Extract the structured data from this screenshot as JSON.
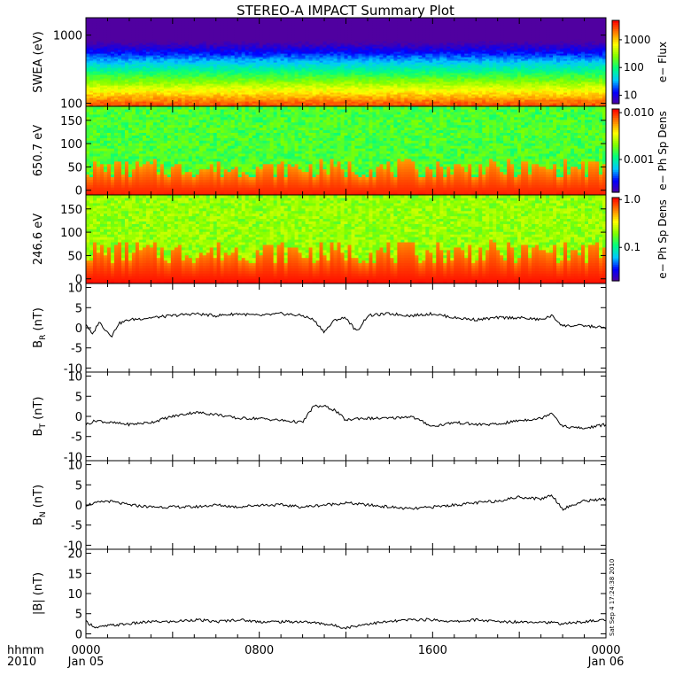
{
  "title": "STEREO-A IMPACT Summary Plot",
  "timestamp": "Sat Sep 4 17:24:38 2010",
  "x_axis": {
    "unit_label": "hhmm",
    "year_label": "2010",
    "ticks": [
      {
        "hour": 0,
        "label": "0000",
        "sublabel": "Jan 05"
      },
      {
        "hour": 8,
        "label": "0800",
        "sublabel": ""
      },
      {
        "hour": 16,
        "label": "1600",
        "sublabel": ""
      },
      {
        "hour": 24,
        "label": "0000",
        "sublabel": "Jan 06"
      }
    ],
    "range_hours": [
      0,
      24
    ]
  },
  "colors": {
    "colormap": [
      "#5000a0",
      "#0000ff",
      "#00c8ff",
      "#00ff80",
      "#80ff00",
      "#ffff00",
      "#ff8000",
      "#ff0000"
    ],
    "line": "#000000",
    "background": "#ffffff"
  },
  "chart_data": [
    {
      "type": "heatmap",
      "id": "swea",
      "ylabel": "SWEA (eV)",
      "yscale": "log",
      "yticks": [
        100,
        1000
      ],
      "ylim": [
        90,
        1800
      ],
      "colorbar": {
        "label": "e− Flux",
        "scale": "log",
        "ticks": [
          {
            "v": 10,
            "label": "10"
          },
          {
            "v": 100,
            "label": "100"
          },
          {
            "v": 1000,
            "label": "1000"
          }
        ],
        "range": [
          5,
          5000
        ]
      },
      "profile": {
        "energy_at_peak": 100,
        "flux_at_peak": 2500,
        "decay_per_decade": 3.0
      }
    },
    {
      "type": "heatmap",
      "id": "pad650",
      "ylabel": "650.7 eV",
      "ylim": [
        -10,
        180
      ],
      "yticks": [
        0,
        50,
        100,
        150
      ],
      "colorbar": {
        "label": "e− Ph Sp Dens",
        "scale": "log",
        "ticks": [
          {
            "v": 0.001,
            "label": "0.001"
          },
          {
            "v": 0.01,
            "label": "0.010"
          }
        ],
        "range": [
          0.0002,
          0.012
        ]
      },
      "background_value": 0.0015,
      "low_angle_value": 0.007,
      "low_angle_width_deg": 45
    },
    {
      "type": "heatmap",
      "id": "pad246",
      "ylabel": "246.6 eV",
      "ylim": [
        -10,
        180
      ],
      "yticks": [
        0,
        50,
        100,
        150
      ],
      "colorbar": {
        "label": "e− Ph Sp Dens",
        "scale": "log",
        "ticks": [
          {
            "v": 0.1,
            "label": "0.1"
          },
          {
            "v": 1.0,
            "label": "1.0"
          }
        ],
        "range": [
          0.02,
          1.1
        ]
      },
      "background_value": 0.2,
      "low_angle_value": 0.7,
      "low_angle_width_deg": 55
    },
    {
      "type": "line",
      "id": "br",
      "ylabel": "B",
      "ylabel_sub": "R",
      "ylabel_unit": " (nT)",
      "ylim": [
        -11,
        11
      ],
      "yticks": [
        -10,
        -5,
        0,
        5,
        10
      ],
      "x": [
        0,
        0.3,
        0.6,
        0.9,
        1.2,
        1.5,
        2,
        3,
        4,
        5,
        6,
        7,
        8,
        9,
        10,
        10.5,
        11,
        11.5,
        12,
        12.5,
        13,
        14,
        15,
        16,
        17,
        18,
        19,
        20,
        21,
        21.5,
        22,
        23,
        24
      ],
      "y": [
        1,
        -1.8,
        1.5,
        -0.5,
        -2,
        1,
        2,
        2.5,
        3,
        3.5,
        3,
        3.5,
        3,
        3.5,
        3,
        2,
        -1,
        2,
        2.5,
        -1,
        3,
        3.5,
        3,
        3.5,
        2.5,
        2,
        2.5,
        2.5,
        2,
        3,
        0.5,
        0.5,
        0
      ]
    },
    {
      "type": "line",
      "id": "bt",
      "ylabel": "B",
      "ylabel_sub": "T",
      "ylabel_unit": " (nT)",
      "ylim": [
        -11,
        11
      ],
      "yticks": [
        -10,
        -5,
        0,
        5,
        10
      ],
      "x": [
        0,
        0.5,
        1,
        2,
        3,
        4,
        5,
        6,
        7,
        8,
        9,
        10,
        10.5,
        11,
        11.5,
        12,
        12.5,
        13,
        14,
        15,
        16,
        17,
        18,
        19,
        20,
        21,
        21.5,
        22,
        23,
        24
      ],
      "y": [
        -2,
        -1,
        -1.5,
        -2,
        -1.5,
        0,
        1,
        0.5,
        -0.5,
        -0.5,
        -1,
        -1.5,
        2.5,
        2.5,
        1.5,
        -1,
        -0.5,
        -0.5,
        -0.5,
        0,
        -2.5,
        -1.5,
        -2,
        -2,
        -1,
        -0.5,
        1,
        -2.5,
        -3,
        -2
      ]
    },
    {
      "type": "line",
      "id": "bn",
      "ylabel": "B",
      "ylabel_sub": "N",
      "ylabel_unit": " (nT)",
      "ylim": [
        -11,
        11
      ],
      "yticks": [
        -10,
        -5,
        0,
        5,
        10
      ],
      "x": [
        0,
        0.5,
        1,
        2,
        3,
        4,
        5,
        6,
        7,
        8,
        9,
        10,
        11,
        12,
        13,
        14,
        15,
        16,
        17,
        18,
        19,
        20,
        21,
        21.5,
        22,
        23,
        24
      ],
      "y": [
        0,
        0.5,
        1,
        0,
        -0.5,
        -0.5,
        -0.5,
        0,
        -0.5,
        0,
        0,
        -0.5,
        0,
        0.5,
        0,
        -0.5,
        -1,
        -0.5,
        0,
        0.5,
        1,
        2,
        1.5,
        2.5,
        -1,
        1,
        1.5
      ]
    },
    {
      "type": "line",
      "id": "bmag",
      "ylabel": "|B| (nT)",
      "ylim": [
        -1,
        21
      ],
      "yticks": [
        0,
        5,
        10,
        15,
        20
      ],
      "x": [
        0,
        0.5,
        1,
        2,
        3,
        4,
        5,
        6,
        7,
        8,
        9,
        10,
        11,
        12,
        12.5,
        13,
        14,
        15,
        16,
        17,
        18,
        19,
        20,
        21,
        22,
        23,
        24
      ],
      "y": [
        3,
        1.5,
        2,
        2.5,
        3,
        3,
        3.5,
        3,
        3.5,
        3,
        3,
        3,
        2.5,
        1.5,
        2,
        2.5,
        3,
        3.5,
        3.5,
        3,
        3.5,
        3,
        3,
        3,
        2.5,
        3,
        3.5
      ]
    }
  ]
}
